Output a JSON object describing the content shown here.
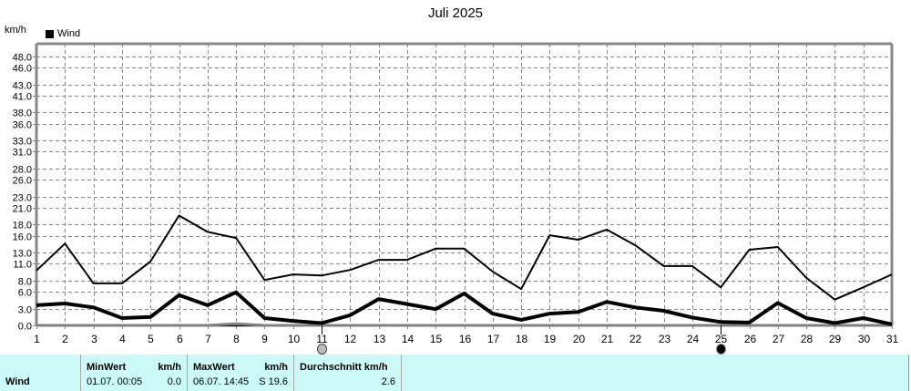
{
  "title": "Juli 2025",
  "y_unit": "km/h",
  "legend": [
    {
      "label": "Wind",
      "color": "#000000"
    }
  ],
  "moon_phases": [
    {
      "day": 11,
      "phase": "full-moon",
      "icon": "full-moon-icon"
    },
    {
      "day": 25,
      "phase": "new-moon",
      "icon": "new-moon-icon"
    }
  ],
  "chart_data": {
    "type": "line",
    "title": "Juli 2025",
    "xlabel": "",
    "ylabel": "km/h",
    "ylim": [
      0,
      48
    ],
    "grid": true,
    "legend_position": "top-left",
    "y_ticks": [
      0.0,
      3.0,
      6.0,
      8.0,
      11.0,
      13.0,
      16.0,
      18.0,
      21.0,
      23.0,
      26.0,
      28.0,
      31.0,
      33.0,
      36.0,
      38.0,
      41.0,
      43.0,
      46.0,
      48.0
    ],
    "x": [
      1,
      2,
      3,
      4,
      5,
      6,
      7,
      8,
      9,
      10,
      11,
      12,
      13,
      14,
      15,
      16,
      17,
      18,
      19,
      20,
      21,
      22,
      23,
      24,
      25,
      26,
      27,
      28,
      29,
      30,
      31
    ],
    "series": [
      {
        "name": "Wind Max",
        "color": "#000000",
        "width": 2,
        "values": [
          9.8,
          14.6,
          7.5,
          7.5,
          11.4,
          19.6,
          16.7,
          15.6,
          8.1,
          9.1,
          8.9,
          9.9,
          11.7,
          11.7,
          13.7,
          13.7,
          9.6,
          6.5,
          16.1,
          15.3,
          17.1,
          14.3,
          10.6,
          10.6,
          6.8,
          13.5,
          14.0,
          8.5,
          4.6,
          6.8,
          9.1
        ]
      },
      {
        "name": "Wind Durchschnitt",
        "color": "#000000",
        "width": 4,
        "values": [
          3.6,
          3.9,
          3.2,
          1.3,
          1.5,
          5.4,
          3.6,
          5.9,
          1.3,
          0.8,
          0.4,
          1.8,
          4.7,
          3.8,
          2.9,
          5.7,
          2.1,
          1.0,
          2.1,
          2.4,
          4.2,
          3.2,
          2.6,
          1.4,
          0.6,
          0.5,
          4.0,
          1.3,
          0.4,
          1.3,
          0.2
        ]
      },
      {
        "name": "Wind Min",
        "color": "#808080",
        "width": 3,
        "values": [
          0,
          0,
          0,
          0,
          0,
          0,
          0,
          0.3,
          0,
          0,
          0,
          0,
          0,
          0,
          0,
          0,
          0,
          0,
          0,
          0,
          0,
          0,
          0,
          0,
          0,
          0,
          0,
          0,
          0,
          0,
          0
        ]
      }
    ]
  },
  "stats": {
    "row_label": "Wind",
    "min": {
      "header": "MinWert",
      "unit": "km/h",
      "datetime": "01.07.  00:05",
      "value": "0.0"
    },
    "max": {
      "header": "MaxWert",
      "unit": "km/h",
      "datetime": "06.07.  14:45",
      "value": "S 19.6"
    },
    "avg": {
      "header": "Durchschnitt km/h",
      "value": "2.6"
    }
  }
}
